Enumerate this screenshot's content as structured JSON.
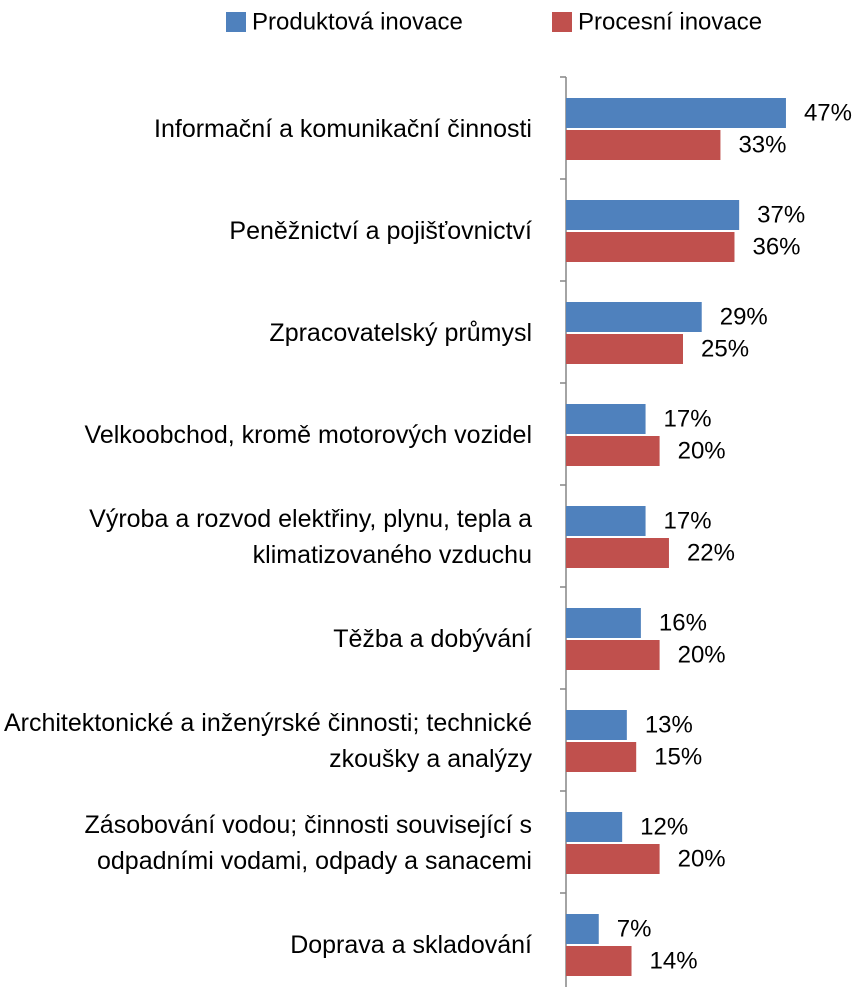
{
  "chart_data": {
    "type": "bar",
    "orientation": "horizontal",
    "categories": [
      "Informační a komunikační činnosti",
      "Peněžnictví a pojišťovnictví",
      "Zpracovatelský průmysl",
      "Velkoobchod, kromě motorových vozidel",
      "Výroba a rozvod elektřiny, plynu, tepla a klimatizovaného vzduchu",
      "Těžba a dobývání",
      "Architektonické a inženýrské činnosti; technické zkoušky a analýzy",
      "Zásobování vodou; činnosti související s odpadními vodami, odpady a sanacemi",
      "Doprava a skladování"
    ],
    "series": [
      {
        "name": "Produktová inovace",
        "color": "#4f81bd",
        "values": [
          47,
          37,
          29,
          17,
          17,
          16,
          13,
          12,
          7
        ],
        "value_labels": [
          "47%",
          "37%",
          "29%",
          "17%",
          "17%",
          "16%",
          "13%",
          "12%",
          "7%"
        ]
      },
      {
        "name": "Procesní inovace",
        "color": "#c0504d",
        "values": [
          33,
          36,
          25,
          20,
          22,
          20,
          15,
          20,
          14
        ],
        "value_labels": [
          "33%",
          "36%",
          "25%",
          "20%",
          "22%",
          "20%",
          "15%",
          "20%",
          "14%"
        ]
      }
    ],
    "legend": "top"
  }
}
